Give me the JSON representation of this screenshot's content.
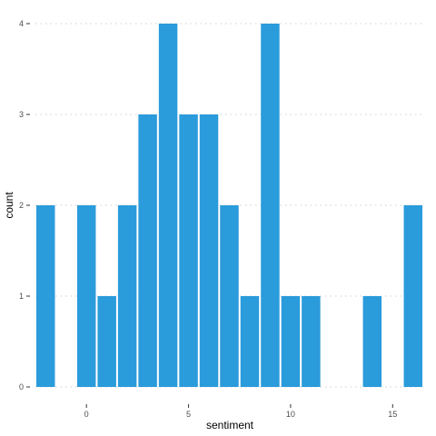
{
  "chart_data": {
    "type": "bar",
    "title": "",
    "xlabel": "sentiment",
    "ylabel": "count",
    "x": [
      -2,
      0,
      1,
      2,
      3,
      4,
      5,
      6,
      7,
      8,
      9,
      10,
      11,
      14,
      16
    ],
    "values": [
      2,
      2,
      1,
      2,
      3,
      4,
      3,
      3,
      2,
      1,
      4,
      1,
      1,
      1,
      2
    ],
    "binwidth": 1,
    "xlim": [
      -2.5,
      16.5
    ],
    "ylim": [
      0,
      4
    ],
    "x_ticks": [
      0,
      5,
      10,
      15
    ],
    "y_ticks": [
      0,
      1,
      2,
      3,
      4
    ],
    "bar_color": "#2a9bdb",
    "grid": true,
    "legend": "none"
  }
}
